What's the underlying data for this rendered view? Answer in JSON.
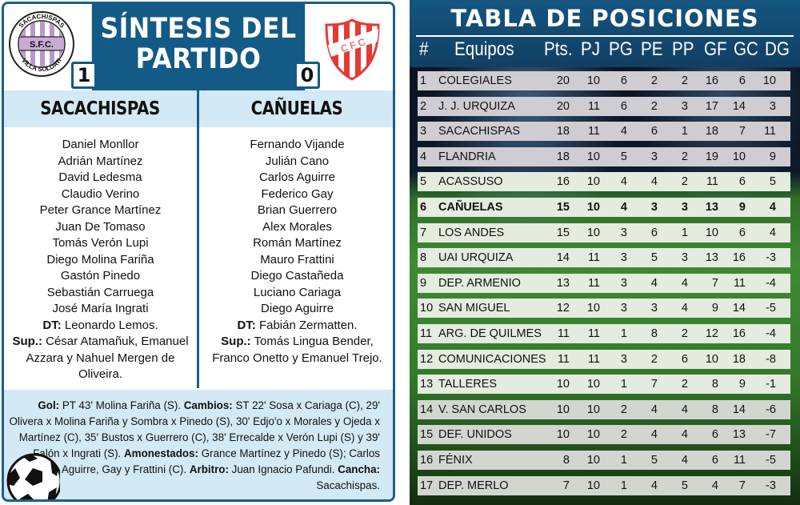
{
  "synthesis": {
    "title_line1": "SÍNTESIS DEL",
    "title_line2": "PARTIDO",
    "home": {
      "logo_icon": "sacachispas-crest-icon",
      "logo_text_top": "SACACHISPAS",
      "logo_text_center": "S.F.C.",
      "logo_text_bottom": "VILLA SOLDATI",
      "score": "1",
      "name": "SACACHISPAS",
      "players": [
        "Daniel Monllor",
        "Adrián Martínez",
        "David Ledesma",
        "Claudio Verino",
        "Peter Grance Martínez",
        "Juan De Tomaso",
        "Tomás Verón Lupi",
        "Diego Molina Fariña",
        "Gastón Pinedo",
        "Sebastián Carruega",
        "José María Ingrati"
      ],
      "dt_label": "DT:",
      "dt": " Leonardo Lemos.",
      "sup_label": "Sup.:",
      "sup": " César Atamañuk, Emanuel Azzara y Nahuel Mergen de Oliveira."
    },
    "away": {
      "logo_icon": "canuelas-crest-icon",
      "logo_text": "C F C",
      "score": "0",
      "name": "CAÑUELAS",
      "players": [
        "Fernando Vijande",
        "Julián Cano",
        "Carlos Aguirre",
        "Federico Gay",
        "Brian Guerrero",
        "Alex Morales",
        "Román Martínez",
        "Mauro Frattini",
        "Diego Castañeda",
        "Luciano Cariaga",
        "Diego Aguirre"
      ],
      "dt_label": "DT:",
      "dt": " Fabián Zermatten.",
      "sup_label": "Sup.:",
      "sup": " Tomás Lingua Bender, Franco Onetto y Emanuel Trejo."
    },
    "notes": {
      "gol_label": "Gol:",
      "gol": " PT 43' Molina Fariña (S). ",
      "cambios_label": "Cambios:",
      "cambios": " ST 22' Sosa x Cariaga (C), 29' Olivera x Molina Fariña y Sombra x Pinedo (S), 30' Edjo'o x Morales y Ojeda x Martínez (C), 35' Bustos x Guerrero (C), 38' Errecalde x Verón Lupi (S) y 39' Falón x Ingrati (S).",
      "amonestados_label": "Amonestados:",
      "amonestados": " Grance Martínez y Pinedo (S); Carlos Aguirre, Gay y Frattini (C).",
      "arbitro_label": "Arbitro:",
      "arbitro": " Juan Ignacio Pafundi. ",
      "cancha_label": "Cancha:",
      "cancha": " Sacachispas."
    },
    "ball_icon": "soccer-ball-icon"
  },
  "standings": {
    "title": "TABLA DE POSICIONES",
    "columns": [
      "#",
      "Equipos",
      "Pts.",
      "PJ",
      "PG",
      "PE",
      "PP",
      "GF",
      "GC",
      "DG"
    ],
    "rows": [
      {
        "pos": "1",
        "team": "COLEGIALES",
        "pts": "20",
        "pj": "10",
        "pg": "6",
        "pe": "2",
        "pp": "2",
        "gf": "16",
        "gc": "6",
        "dg": "10"
      },
      {
        "pos": "2",
        "team": "J. J. URQUIZA",
        "pts": "20",
        "pj": "11",
        "pg": "6",
        "pe": "2",
        "pp": "3",
        "gf": "17",
        "gc": "14",
        "dg": "3"
      },
      {
        "pos": "3",
        "team": "SACACHISPAS",
        "pts": "18",
        "pj": "11",
        "pg": "4",
        "pe": "6",
        "pp": "1",
        "gf": "18",
        "gc": "7",
        "dg": "11"
      },
      {
        "pos": "4",
        "team": "FLANDRIA",
        "pts": "18",
        "pj": "10",
        "pg": "5",
        "pe": "3",
        "pp": "2",
        "gf": "19",
        "gc": "10",
        "dg": "9"
      },
      {
        "pos": "5",
        "team": "ACASSUSO",
        "pts": "16",
        "pj": "10",
        "pg": "4",
        "pe": "4",
        "pp": "2",
        "gf": "11",
        "gc": "6",
        "dg": "5"
      },
      {
        "pos": "6",
        "team": "CAÑUELAS",
        "pts": "15",
        "pj": "10",
        "pg": "4",
        "pe": "3",
        "pp": "3",
        "gf": "13",
        "gc": "9",
        "dg": "4"
      },
      {
        "pos": "7",
        "team": "LOS ANDES",
        "pts": "15",
        "pj": "10",
        "pg": "3",
        "pe": "6",
        "pp": "1",
        "gf": "10",
        "gc": "6",
        "dg": "4"
      },
      {
        "pos": "8",
        "team": "UAI URQUIZA",
        "pts": "14",
        "pj": "11",
        "pg": "3",
        "pe": "5",
        "pp": "3",
        "gf": "13",
        "gc": "16",
        "dg": "-3"
      },
      {
        "pos": "9",
        "team": "DEP. ARMENIO",
        "pts": "13",
        "pj": "11",
        "pg": "3",
        "pe": "4",
        "pp": "4",
        "gf": "7",
        "gc": "11",
        "dg": "-4"
      },
      {
        "pos": "10",
        "team": "SAN MIGUEL",
        "pts": "12",
        "pj": "10",
        "pg": "3",
        "pe": "3",
        "pp": "4",
        "gf": "9",
        "gc": "14",
        "dg": "-5"
      },
      {
        "pos": "11",
        "team": "ARG. DE QUILMES",
        "pts": "11",
        "pj": "11",
        "pg": "1",
        "pe": "8",
        "pp": "2",
        "gf": "12",
        "gc": "16",
        "dg": "-4"
      },
      {
        "pos": "12",
        "team": "COMUNICACIONES",
        "pts": "11",
        "pj": "11",
        "pg": "3",
        "pe": "2",
        "pp": "6",
        "gf": "10",
        "gc": "18",
        "dg": "-8"
      },
      {
        "pos": "13",
        "team": "TALLERES",
        "pts": "10",
        "pj": "10",
        "pg": "1",
        "pe": "7",
        "pp": "2",
        "gf": "8",
        "gc": "9",
        "dg": "-1"
      },
      {
        "pos": "14",
        "team": "V. SAN CARLOS",
        "pts": "10",
        "pj": "10",
        "pg": "2",
        "pe": "4",
        "pp": "4",
        "gf": "8",
        "gc": "14",
        "dg": "-6"
      },
      {
        "pos": "15",
        "team": "DEF. UNIDOS",
        "pts": "10",
        "pj": "10",
        "pg": "2",
        "pe": "4",
        "pp": "4",
        "gf": "6",
        "gc": "13",
        "dg": "-7"
      },
      {
        "pos": "16",
        "team": "FÉNIX",
        "pts": "8",
        "pj": "10",
        "pg": "1",
        "pe": "5",
        "pp": "4",
        "gf": "6",
        "gc": "11",
        "dg": "-5"
      },
      {
        "pos": "17",
        "team": "DEP. MERLO",
        "pts": "7",
        "pj": "10",
        "pg": "1",
        "pe": "4",
        "pp": "5",
        "gf": "4",
        "gc": "7",
        "dg": "-3"
      }
    ],
    "highlighted_row": "6"
  },
  "colors": {
    "brand_blue": "#145a86",
    "light_blue_band": "#d3e9f5",
    "sacachispas_purple": "#b89ac8",
    "canuelas_red": "#e53935"
  }
}
